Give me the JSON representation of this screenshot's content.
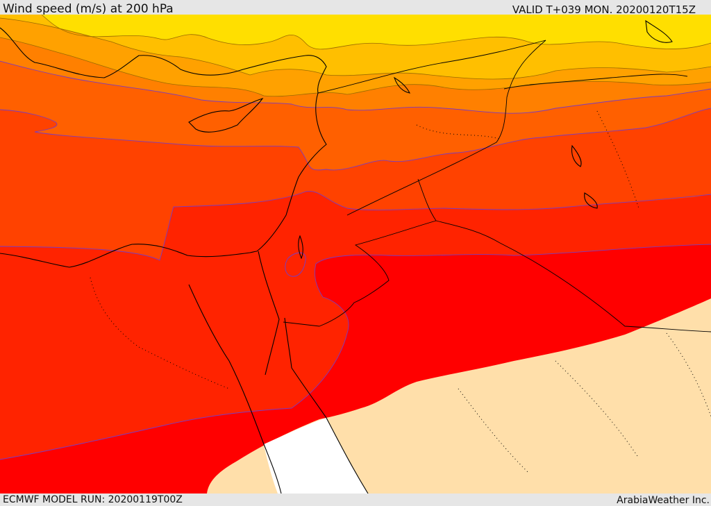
{
  "header": {
    "title": "Wind speed (m/s) at 200 hPa",
    "valid": "VALID T+039 MON. 20200120T15Z"
  },
  "footer": {
    "model_run": "ECMWF MODEL RUN: 20200119T00Z",
    "credit": "ArabiaWeather Inc."
  },
  "map": {
    "field": "wind speed",
    "level": "200 hPa",
    "unit": "m/s",
    "fill_colors": {
      "band_1": "#ffdf00",
      "band_2": "#ffbf00",
      "band_3": "#ffa100",
      "band_4": "#ff8000",
      "band_5": "#ff6000",
      "band_6": "#ff4200",
      "band_7": "#ff2300",
      "band_8": "#ff0000",
      "calm_area": "#ffdfaa",
      "no_fill": "#ffffff"
    },
    "contour_color": "#7b3bbf",
    "coastline_color": "#000000"
  }
}
